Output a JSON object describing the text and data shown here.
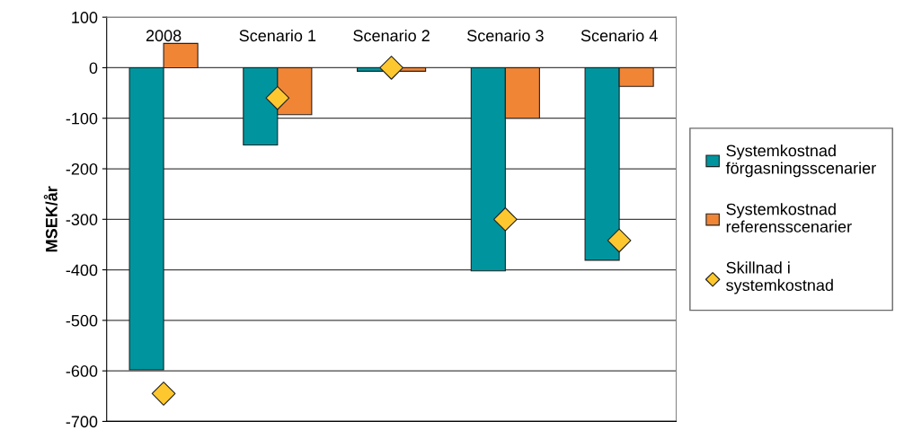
{
  "chart_data": {
    "type": "bar",
    "ylabel": "MSEK/år",
    "categories": [
      "2008",
      "Scenario 1",
      "Scenario 2",
      "Scenario 3",
      "Scenario 4"
    ],
    "series": [
      {
        "name": "Systemkostnad\nförgasningsscenarier",
        "color": "#00959e",
        "values": [
          -598,
          -153,
          -7,
          -402,
          -381
        ]
      },
      {
        "name": "Systemkostnad\nreferensscenarier",
        "color": "#f08536",
        "values": [
          48,
          -93,
          -7,
          -100,
          -37
        ]
      },
      {
        "name": "Skillnad i\nsystemkostnad",
        "type": "scatter",
        "marker": "diamond",
        "color": "#fdc82f",
        "values": [
          -645,
          -60,
          0,
          -300,
          -342
        ]
      }
    ],
    "ylim": [
      -700,
      100
    ],
    "yticks": [
      -700,
      -600,
      -500,
      -400,
      -300,
      -200,
      -100,
      0,
      100
    ],
    "grid": "y",
    "legend": "right"
  }
}
